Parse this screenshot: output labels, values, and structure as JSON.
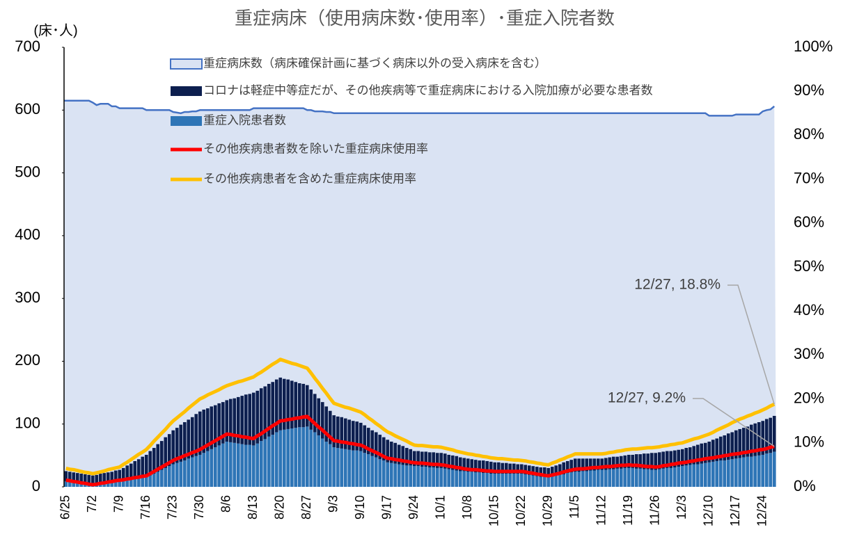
{
  "chart_data": {
    "type": "combo",
    "title": "重症病床（使用病床数･使用率）･重症入院者数",
    "y_axis_label": "(床･人)",
    "ylim": [
      0,
      700
    ],
    "yticks": [
      0,
      100,
      200,
      300,
      400,
      500,
      600,
      700
    ],
    "y2lim": [
      0,
      100
    ],
    "y2ticks": [
      {
        "value": 0,
        "label": "0%"
      },
      {
        "value": 10,
        "label": "10%"
      },
      {
        "value": 20,
        "label": "20%"
      },
      {
        "value": 30,
        "label": "30%"
      },
      {
        "value": 40,
        "label": "40%"
      },
      {
        "value": 50,
        "label": "50%"
      },
      {
        "value": 60,
        "label": "60%"
      },
      {
        "value": 70,
        "label": "70%"
      },
      {
        "value": 80,
        "label": "80%"
      },
      {
        "value": 90,
        "label": "90%"
      },
      {
        "value": 100,
        "label": "100%"
      }
    ],
    "legend": "top",
    "categories": [
      "6/25",
      null,
      null,
      null,
      null,
      null,
      null,
      "7/2",
      null,
      null,
      null,
      null,
      null,
      null,
      "7/9",
      null,
      null,
      null,
      null,
      null,
      null,
      "7/16",
      null,
      null,
      null,
      null,
      null,
      null,
      "7/23",
      null,
      null,
      null,
      null,
      null,
      null,
      "7/30",
      null,
      null,
      null,
      null,
      null,
      null,
      "8/6",
      null,
      null,
      null,
      null,
      null,
      null,
      "8/13",
      null,
      null,
      null,
      null,
      null,
      null,
      "8/20",
      null,
      null,
      null,
      null,
      null,
      null,
      "8/27",
      null,
      null,
      null,
      null,
      null,
      null,
      "9/3",
      null,
      null,
      null,
      null,
      null,
      null,
      "9/10",
      null,
      null,
      null,
      null,
      null,
      null,
      "9/17",
      null,
      null,
      null,
      null,
      null,
      null,
      "9/24",
      null,
      null,
      null,
      null,
      null,
      null,
      "10/1",
      null,
      null,
      null,
      null,
      null,
      null,
      "10/8",
      null,
      null,
      null,
      null,
      null,
      null,
      "10/15",
      null,
      null,
      null,
      null,
      null,
      null,
      "10/22",
      null,
      null,
      null,
      null,
      null,
      null,
      "10/29",
      null,
      null,
      null,
      null,
      null,
      null,
      "11/5",
      null,
      null,
      null,
      null,
      null,
      null,
      "11/12",
      null,
      null,
      null,
      null,
      null,
      null,
      "11/19",
      null,
      null,
      null,
      null,
      null,
      null,
      "11/26",
      null,
      null,
      null,
      null,
      null,
      null,
      "12/3",
      null,
      null,
      null,
      null,
      null,
      null,
      "12/10",
      null,
      null,
      null,
      null,
      null,
      null,
      "12/17",
      null,
      null,
      null,
      null,
      null,
      null,
      "12/24",
      null,
      null,
      null
    ],
    "series": [
      {
        "name": "重症病床数（病床確保計画に基づく病床以外の受入病床を含む）",
        "type": "area",
        "color": "#dae3f3",
        "edge": "#4472c4",
        "values": [
          615,
          615,
          615,
          615,
          615,
          615,
          615,
          612,
          608,
          610,
          610,
          610,
          606,
          606,
          603,
          603,
          603,
          603,
          603,
          603,
          603,
          600,
          600,
          600,
          600,
          600,
          600,
          600,
          597,
          596,
          595,
          597,
          597,
          598,
          598,
          600,
          600,
          600,
          600,
          600,
          600,
          600,
          600,
          600,
          600,
          600,
          600,
          600,
          600,
          603,
          603,
          603,
          603,
          603,
          603,
          603,
          603,
          603,
          603,
          603,
          603,
          603,
          603,
          600,
          600,
          598,
          598,
          598,
          597,
          597,
          595,
          595,
          595,
          595,
          595,
          595,
          595,
          595,
          595,
          595,
          595,
          595,
          595,
          595,
          595,
          595,
          595,
          595,
          595,
          595,
          595,
          595,
          595,
          595,
          595,
          595,
          595,
          595,
          595,
          595,
          595,
          595,
          595,
          595,
          595,
          595,
          595,
          595,
          595,
          595,
          595,
          595,
          595,
          595,
          595,
          595,
          595,
          595,
          595,
          595,
          595,
          595,
          595,
          595,
          595,
          595,
          595,
          595,
          595,
          595,
          595,
          595,
          595,
          595,
          595,
          595,
          595,
          595,
          595,
          595,
          595,
          595,
          595,
          595,
          595,
          595,
          595,
          595,
          595,
          595,
          595,
          595,
          595,
          595,
          595,
          595,
          595,
          595,
          595,
          595,
          595,
          595,
          595,
          595,
          595,
          595,
          595,
          595,
          591,
          591,
          591,
          591,
          591,
          591,
          591,
          593,
          593,
          593,
          593,
          593,
          593,
          593,
          598,
          600,
          601,
          606
        ]
      },
      {
        "name": "重症入院患者数",
        "type": "bar",
        "color": "#2e75b6",
        "values": [
          9,
          8,
          7,
          6,
          5,
          4,
          4,
          3,
          4,
          5,
          6,
          6,
          7,
          8,
          9,
          10,
          11,
          12,
          12,
          13,
          14,
          15,
          18,
          21,
          24,
          27,
          30,
          33,
          36,
          38,
          40,
          42,
          45,
          47,
          49,
          51,
          54,
          57,
          60,
          63,
          66,
          69,
          72,
          71,
          70,
          69,
          68,
          67,
          67,
          66,
          69,
          73,
          76,
          80,
          83,
          87,
          90,
          91,
          92,
          93,
          94,
          95,
          95,
          96,
          91,
          87,
          82,
          77,
          72,
          68,
          63,
          62,
          61,
          60,
          59,
          58,
          58,
          57,
          54,
          52,
          49,
          47,
          44,
          42,
          39,
          38,
          37,
          36,
          35,
          34,
          34,
          33,
          33,
          32,
          32,
          31,
          31,
          30,
          30,
          29,
          28,
          27,
          26,
          25,
          25,
          24,
          24,
          23,
          23,
          22,
          22,
          21,
          21,
          21,
          21,
          21,
          21,
          21,
          21,
          21,
          20,
          19,
          18,
          17,
          16,
          16,
          15,
          16,
          18,
          19,
          20,
          22,
          23,
          24,
          24,
          25,
          25,
          26,
          26,
          27,
          27,
          27,
          28,
          28,
          29,
          29,
          30,
          30,
          30,
          29,
          29,
          28,
          28,
          27,
          27,
          28,
          29,
          30,
          30,
          31,
          32,
          33,
          34,
          35,
          36,
          36,
          37,
          38,
          39,
          40,
          41,
          42,
          42,
          43,
          44,
          45,
          46,
          47,
          48,
          48,
          49,
          50,
          51,
          53,
          54,
          56
        ]
      },
      {
        "name": "コロナは軽症中等症だが、その他疾病等で重症病床における入院加療が必要な患者数",
        "type": "bar",
        "color": "#0d1f4f",
        "values": [
          16,
          16,
          16,
          16,
          16,
          16,
          15,
          15,
          15,
          16,
          16,
          17,
          17,
          18,
          18,
          20,
          23,
          25,
          29,
          31,
          34,
          36,
          39,
          41,
          44,
          46,
          49,
          51,
          54,
          56,
          59,
          61,
          62,
          64,
          67,
          69,
          69,
          68,
          68,
          67,
          67,
          66,
          66,
          69,
          71,
          74,
          77,
          80,
          81,
          84,
          84,
          84,
          84,
          84,
          84,
          84,
          84,
          81,
          79,
          76,
          73,
          70,
          69,
          66,
          64,
          61,
          59,
          58,
          56,
          53,
          51,
          50,
          50,
          49,
          48,
          47,
          46,
          45,
          44,
          42,
          41,
          40,
          39,
          37,
          36,
          34,
          33,
          31,
          30,
          28,
          26,
          24,
          24,
          24,
          24,
          24,
          24,
          24,
          24,
          24,
          23,
          23,
          23,
          22,
          21,
          21,
          20,
          20,
          19,
          20,
          19,
          19,
          18,
          18,
          17,
          17,
          16,
          16,
          15,
          15,
          15,
          15,
          15,
          15,
          15,
          15,
          15,
          16,
          16,
          17,
          19,
          19,
          20,
          21,
          21,
          20,
          20,
          19,
          19,
          18,
          18,
          19,
          19,
          20,
          19,
          20,
          20,
          21,
          21,
          23,
          23,
          25,
          25,
          27,
          27,
          27,
          27,
          27,
          27,
          27,
          27,
          27,
          28,
          28,
          29,
          31,
          32,
          32,
          33,
          35,
          36,
          38,
          40,
          42,
          43,
          45,
          46,
          47,
          48,
          51,
          52,
          53,
          54,
          55,
          56,
          57
        ]
      },
      {
        "name": "その他疾病患者数を除いた重症病床使用率",
        "type": "line",
        "axis": "y2",
        "color": "#ff0000",
        "values": [
          1.5,
          1.4,
          1.2,
          1.1,
          0.9,
          0.8,
          0.6,
          0.5,
          0.6,
          0.8,
          0.9,
          1.1,
          1.2,
          1.4,
          1.5,
          1.6,
          1.8,
          1.9,
          2.1,
          2.2,
          2.4,
          2.5,
          3.0,
          3.5,
          4.0,
          4.5,
          5.0,
          5.5,
          6.0,
          6.4,
          6.7,
          7.1,
          7.4,
          7.8,
          8.1,
          8.5,
          9.0,
          9.5,
          10.0,
          10.5,
          11.0,
          11.5,
          12.0,
          11.9,
          11.7,
          11.6,
          11.4,
          11.3,
          11.1,
          11.0,
          11.6,
          12.1,
          12.7,
          13.3,
          13.9,
          14.4,
          15.0,
          15.1,
          15.3,
          15.4,
          15.6,
          15.7,
          15.9,
          16.0,
          15.2,
          14.4,
          13.6,
          12.9,
          12.1,
          11.3,
          10.5,
          10.4,
          10.2,
          10.1,
          9.9,
          9.8,
          9.6,
          9.5,
          9.1,
          8.6,
          8.2,
          7.8,
          7.4,
          6.9,
          6.5,
          6.4,
          6.2,
          6.1,
          5.9,
          5.8,
          5.6,
          5.5,
          5.4,
          5.4,
          5.3,
          5.2,
          5.1,
          5.1,
          5.0,
          4.9,
          4.7,
          4.6,
          4.4,
          4.3,
          4.1,
          4.0,
          3.9,
          3.9,
          3.8,
          3.7,
          3.6,
          3.6,
          3.5,
          3.5,
          3.5,
          3.5,
          3.5,
          3.5,
          3.5,
          3.5,
          3.4,
          3.2,
          3.1,
          2.9,
          2.8,
          2.6,
          2.5,
          2.7,
          2.9,
          3.1,
          3.4,
          3.6,
          3.8,
          4.0,
          4.1,
          4.1,
          4.2,
          4.3,
          4.4,
          4.4,
          4.5,
          4.6,
          4.6,
          4.7,
          4.8,
          4.9,
          4.9,
          5.0,
          4.9,
          4.9,
          4.8,
          4.7,
          4.6,
          4.6,
          4.5,
          4.6,
          4.8,
          4.9,
          5.1,
          5.2,
          5.4,
          5.5,
          5.6,
          5.8,
          5.9,
          6.1,
          6.2,
          6.4,
          6.5,
          6.6,
          6.8,
          6.9,
          7.1,
          7.2,
          7.4,
          7.5,
          7.6,
          7.8,
          7.9,
          8.1,
          8.2,
          8.4,
          8.5,
          8.7,
          9.0,
          9.2
        ]
      },
      {
        "name": "その他疾病患者を含めた重症病床使用率",
        "type": "line",
        "axis": "y2",
        "color": "#ffc000",
        "values": [
          4.2,
          4.0,
          3.9,
          3.7,
          3.5,
          3.3,
          3.2,
          3.0,
          3.2,
          3.4,
          3.6,
          3.9,
          4.1,
          4.3,
          4.5,
          5.1,
          5.6,
          6.2,
          6.8,
          7.4,
          7.9,
          8.5,
          9.4,
          10.4,
          11.3,
          12.2,
          13.1,
          14.1,
          15.0,
          15.7,
          16.4,
          17.1,
          17.9,
          18.6,
          19.3,
          20.0,
          20.4,
          20.9,
          21.3,
          21.7,
          22.1,
          22.6,
          23.0,
          23.3,
          23.6,
          23.9,
          24.1,
          24.4,
          24.7,
          25.0,
          25.6,
          26.1,
          26.7,
          27.3,
          27.9,
          28.4,
          29.0,
          28.7,
          28.4,
          28.1,
          27.9,
          27.6,
          27.3,
          27.0,
          25.9,
          24.7,
          23.6,
          22.4,
          21.3,
          20.1,
          19.0,
          18.7,
          18.4,
          18.1,
          17.9,
          17.6,
          17.3,
          17.0,
          16.4,
          15.7,
          15.1,
          14.4,
          13.8,
          13.1,
          12.5,
          12.1,
          11.6,
          11.2,
          10.8,
          10.4,
          9.9,
          9.5,
          9.4,
          9.4,
          9.3,
          9.2,
          9.1,
          9.1,
          9.0,
          8.8,
          8.6,
          8.4,
          8.1,
          7.9,
          7.7,
          7.5,
          7.4,
          7.2,
          7.1,
          6.9,
          6.8,
          6.6,
          6.5,
          6.4,
          6.4,
          6.3,
          6.2,
          6.1,
          6.1,
          6.0,
          5.9,
          5.7,
          5.6,
          5.4,
          5.3,
          5.1,
          5.0,
          5.4,
          5.7,
          6.1,
          6.4,
          6.8,
          7.1,
          7.5,
          7.5,
          7.5,
          7.5,
          7.5,
          7.5,
          7.5,
          7.5,
          7.6,
          7.8,
          7.9,
          8.1,
          8.2,
          8.4,
          8.5,
          8.6,
          8.6,
          8.7,
          8.8,
          8.9,
          8.9,
          9.0,
          9.1,
          9.3,
          9.4,
          9.6,
          9.7,
          9.9,
          10.0,
          10.3,
          10.6,
          10.9,
          11.1,
          11.4,
          11.7,
          12.0,
          12.4,
          12.9,
          13.3,
          13.7,
          14.1,
          14.6,
          15.0,
          15.4,
          15.7,
          16.1,
          16.4,
          16.8,
          17.1,
          17.5,
          17.9,
          18.4,
          18.8
        ]
      }
    ],
    "annotations": [
      {
        "text": "12/27, 18.8%",
        "series": 4
      },
      {
        "text": "12/27, 9.2%",
        "series": 3
      }
    ]
  }
}
